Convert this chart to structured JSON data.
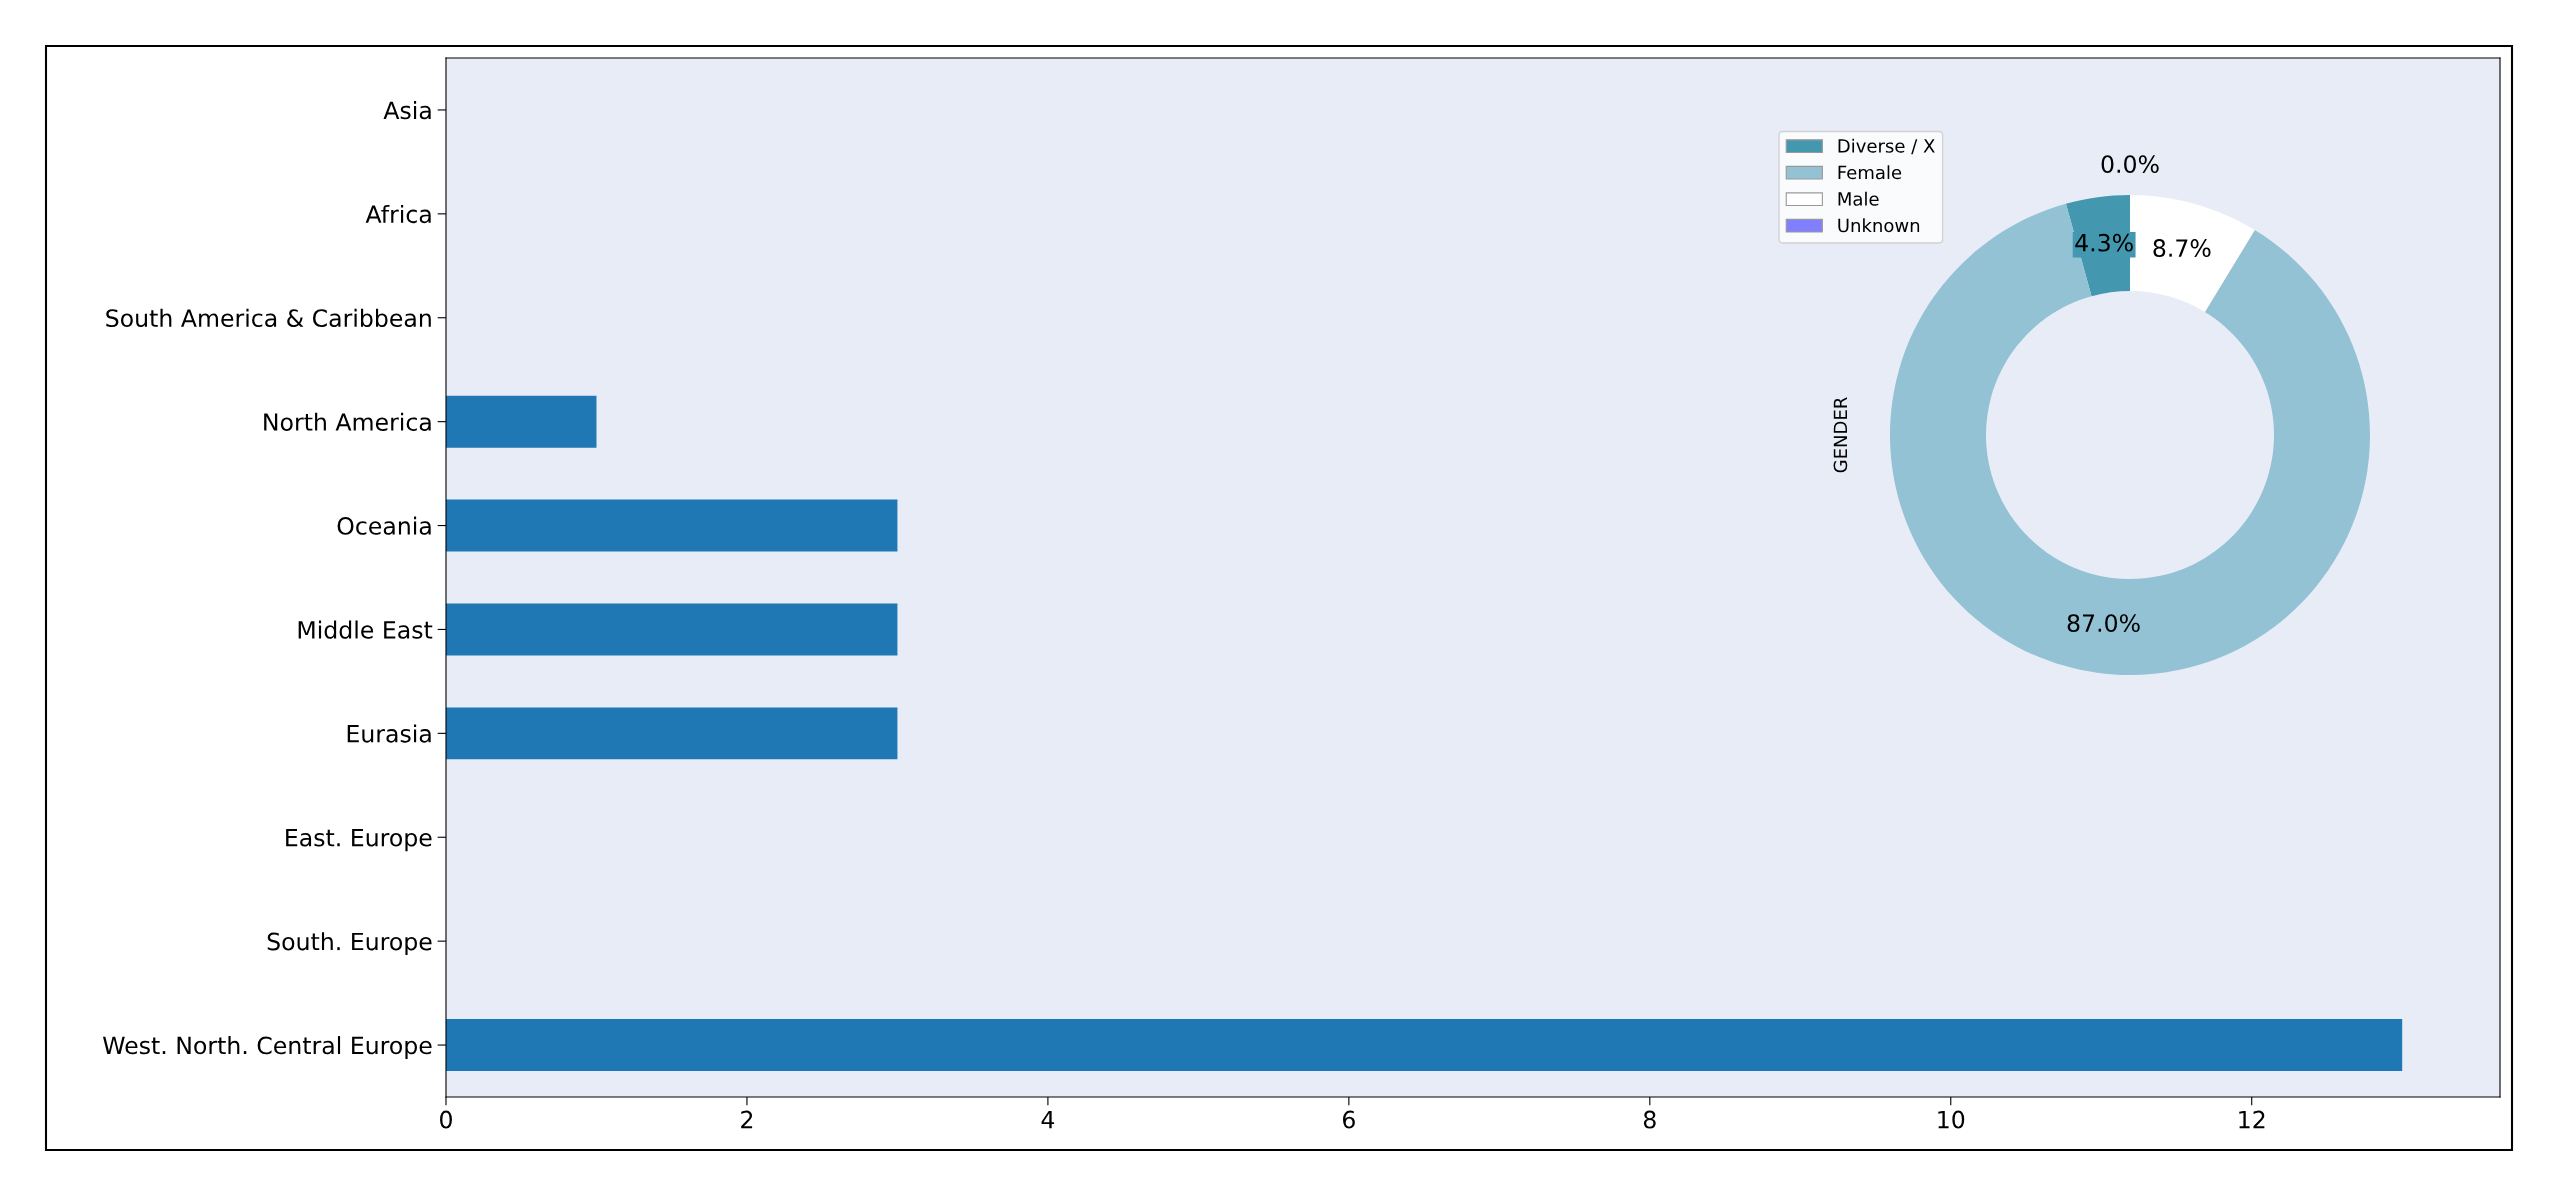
{
  "chart_data": [
    {
      "type": "bar",
      "orientation": "horizontal",
      "categories": [
        "Asia",
        "Africa",
        "South America & Caribbean",
        "North America",
        "Oceania",
        "Middle East",
        "Eurasia",
        "East. Europe",
        "South. Europe",
        "West. North. Central Europe"
      ],
      "values": [
        0,
        0,
        0,
        1,
        3,
        3,
        3,
        0,
        0,
        13
      ],
      "color": "#1f77b4",
      "xlim": [
        0,
        13.65
      ],
      "xticks": [
        0,
        2,
        4,
        6,
        8,
        10,
        12
      ],
      "grid": false
    },
    {
      "type": "donut",
      "ylabel": "GENDER",
      "categories": [
        "Diverse / X",
        "Female",
        "Male",
        "Unknown"
      ],
      "values": [
        4.3,
        87.0,
        8.7,
        0.0
      ],
      "colors": [
        "#4398b0",
        "#93c2d4",
        "#ffffff",
        "#8080ff"
      ],
      "value_labels": [
        "4.3%",
        "87.0%",
        "8.7%",
        "0.0%"
      ],
      "legend": "top left"
    }
  ]
}
